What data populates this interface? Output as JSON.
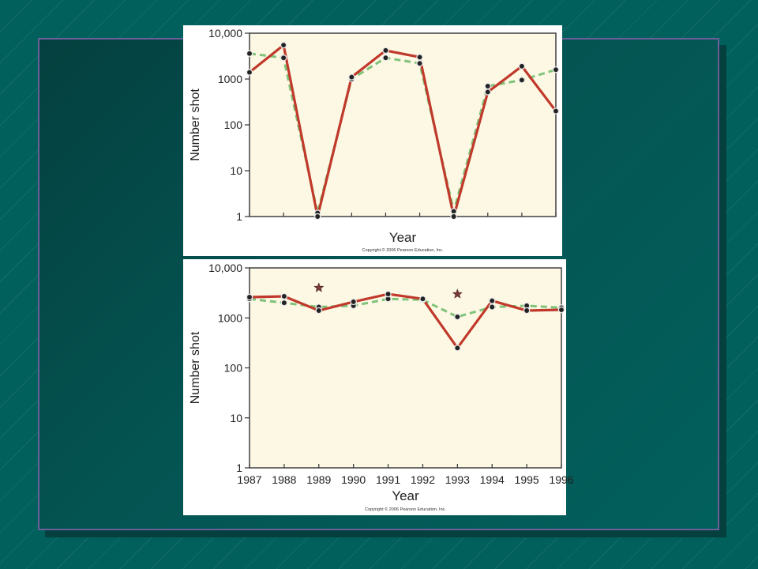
{
  "colors": {
    "background": "#02605c",
    "plot_background": "#fdf8e4",
    "series_solid": "#c0392b",
    "series_dashed": "#7fc47a"
  },
  "chart_data": [
    {
      "type": "line",
      "title": "",
      "xlabel": "Year",
      "ylabel": "Number shot",
      "yscale": "log",
      "ylim": [
        1,
        10000
      ],
      "yticks": [
        1,
        10,
        100,
        1000,
        10000
      ],
      "ytick_labels": [
        "1",
        "10",
        "100",
        "1000",
        "10,000"
      ],
      "x": [
        1987,
        1988,
        1989,
        1990,
        1991,
        1992,
        1993,
        1994,
        1995,
        1996
      ],
      "xtick_labels": [],
      "grid": false,
      "series": [
        {
          "style": "solid",
          "color": "#c0392b",
          "values": [
            1400,
            5500,
            1,
            1100,
            4200,
            3000,
            1,
            520,
            1900,
            200
          ]
        },
        {
          "style": "dashed",
          "color": "#7fc47a",
          "values": [
            3600,
            2900,
            1.2,
            1000,
            2900,
            2200,
            1.3,
            700,
            950,
            1600
          ]
        }
      ],
      "copyright": "Copyright © 2006 Pearson Education, Inc."
    },
    {
      "type": "line",
      "title": "",
      "xlabel": "Year",
      "ylabel": "Number shot",
      "yscale": "log",
      "ylim": [
        1,
        10000
      ],
      "yticks": [
        1,
        10,
        100,
        1000,
        10000
      ],
      "ytick_labels": [
        "1",
        "10",
        "100",
        "1000",
        "10,000"
      ],
      "x": [
        1987,
        1988,
        1989,
        1990,
        1991,
        1992,
        1993,
        1994,
        1995,
        1996
      ],
      "xtick_labels": [
        "1987",
        "1988",
        "1989",
        "1990",
        "1991",
        "1992",
        "1993",
        "1994",
        "1995",
        "1996"
      ],
      "grid": false,
      "series": [
        {
          "style": "solid",
          "color": "#c0392b",
          "values": [
            2600,
            2700,
            1400,
            2100,
            3000,
            2400,
            250,
            2200,
            1400,
            1450
          ]
        },
        {
          "style": "dashed",
          "color": "#7fc47a",
          "values": [
            2400,
            2000,
            1650,
            1750,
            2400,
            2300,
            1050,
            1650,
            1750,
            1600
          ]
        }
      ],
      "markers": [
        {
          "type": "star",
          "x": 1989,
          "y": 4000
        },
        {
          "type": "star",
          "x": 1993,
          "y": 3000
        }
      ],
      "copyright": "Copyright © 2006 Pearson Education, Inc."
    }
  ]
}
